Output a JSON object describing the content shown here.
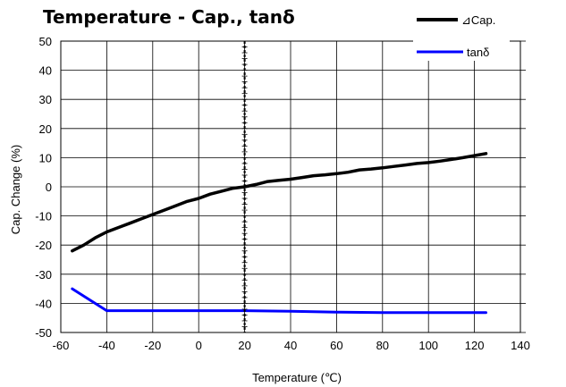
{
  "chart_data": {
    "type": "line",
    "title": "Temperature - Cap., tanδ",
    "xlabel": "Temperature (℃)",
    "ylabel": "Cap. Change (%)",
    "xlim": [
      -60,
      140
    ],
    "ylim": [
      -50,
      50
    ],
    "x_ticks": [
      "-60",
      "-40",
      "-20",
      "0",
      "20",
      "40",
      "60",
      "80",
      "100",
      "120",
      "140"
    ],
    "y_ticks": [
      "50",
      "40",
      "30",
      "20",
      "10",
      "0",
      "-10",
      "-20",
      "-30",
      "-40",
      "-50"
    ],
    "grid": true,
    "legend_position": "top-right",
    "series": [
      {
        "name": "⊿Cap.",
        "color": "#000000",
        "x": [
          -55,
          -50,
          -45,
          -40,
          -35,
          -30,
          -25,
          -20,
          -15,
          -10,
          -5,
          0,
          5,
          10,
          15,
          20,
          25,
          30,
          35,
          40,
          45,
          50,
          55,
          60,
          65,
          70,
          75,
          80,
          85,
          90,
          95,
          100,
          105,
          110,
          115,
          120,
          125
        ],
        "y": [
          -22,
          -20,
          -17.5,
          -15.5,
          -14,
          -12.5,
          -11,
          -9.5,
          -8,
          -6.5,
          -5,
          -4,
          -2.5,
          -1.5,
          -0.5,
          0,
          0.8,
          1.8,
          2.2,
          2.6,
          3.2,
          3.8,
          4.1,
          4.5,
          5,
          5.8,
          6.1,
          6.5,
          7,
          7.5,
          8,
          8.3,
          8.8,
          9.4,
          10,
          10.7,
          11.4
        ]
      },
      {
        "name": "tanδ",
        "color": "#0000ff",
        "x": [
          -55,
          -40,
          -20,
          0,
          20,
          40,
          60,
          80,
          100,
          125
        ],
        "y": [
          -35,
          -42.5,
          -42.5,
          -42.5,
          -42.5,
          -42.7,
          -43,
          -43.2,
          -43.2,
          -43.2
        ]
      }
    ]
  }
}
